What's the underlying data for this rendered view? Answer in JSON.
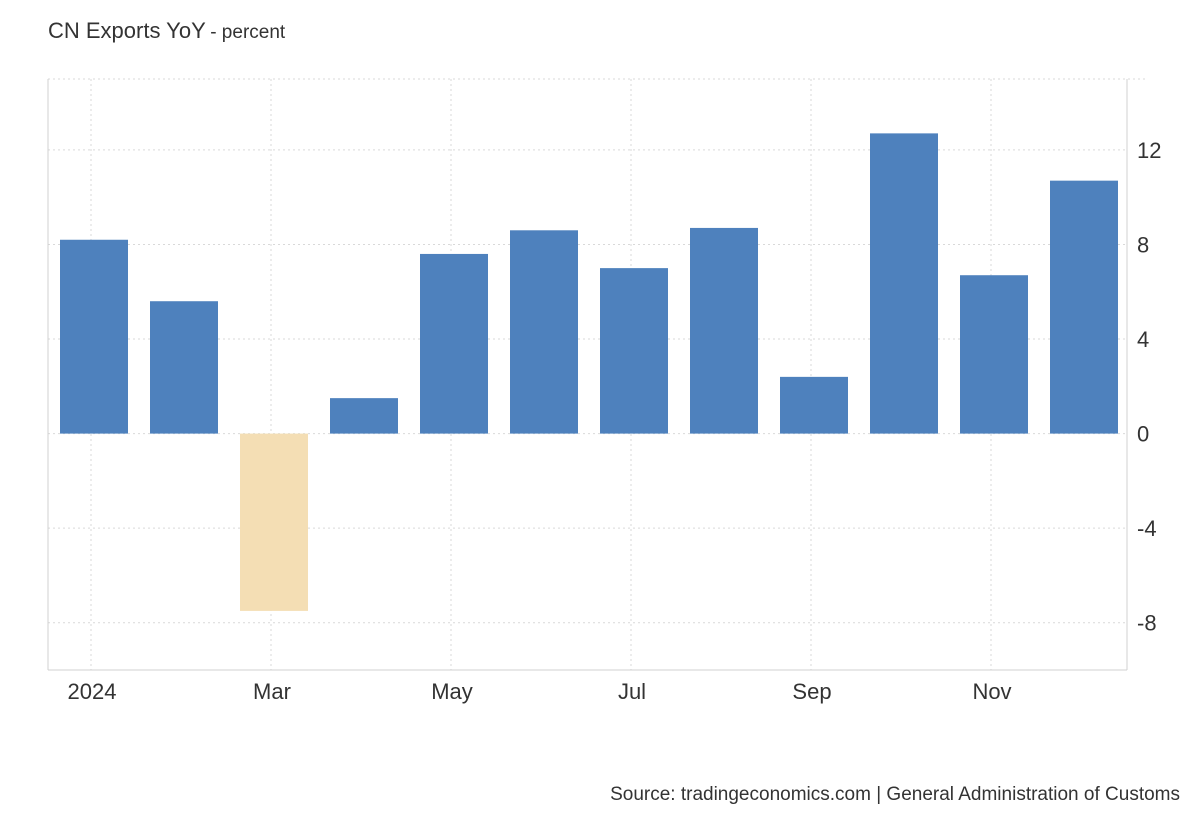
{
  "title": "CN Exports YoY",
  "subtitle": "- percent",
  "source": "Source: tradingeconomics.com | General Administration of Customs",
  "colors": {
    "positive": "#4e81bd",
    "negative": "#f4deb4",
    "grid": "#d9d9d9",
    "axis": "#d0d0d0",
    "text": "#333333"
  },
  "chart_data": {
    "type": "bar",
    "title": "CN Exports YoY",
    "subtitle": "percent",
    "categories": [
      "Jan 2024",
      "Feb 2024",
      "Mar 2024",
      "Apr 2024",
      "May 2024",
      "Jun 2024",
      "Jul 2024",
      "Aug 2024",
      "Sep 2024",
      "Oct 2024",
      "Nov 2024",
      "Dec 2024"
    ],
    "values": [
      8.2,
      5.6,
      -7.5,
      1.5,
      7.6,
      8.6,
      7.0,
      8.7,
      2.4,
      12.7,
      6.7,
      10.7
    ],
    "x_tick_labels": [
      {
        "label": "2024",
        "index": 0
      },
      {
        "label": "Mar",
        "index": 2
      },
      {
        "label": "May",
        "index": 4
      },
      {
        "label": "Jul",
        "index": 6
      },
      {
        "label": "Sep",
        "index": 8
      },
      {
        "label": "Nov",
        "index": 10
      }
    ],
    "y_ticks": [
      -8,
      -4,
      0,
      4,
      8,
      12
    ],
    "ylim": [
      -10,
      15
    ],
    "y_axis_side": "right",
    "grid": true,
    "legend": "none",
    "xlabel": "",
    "ylabel": ""
  }
}
